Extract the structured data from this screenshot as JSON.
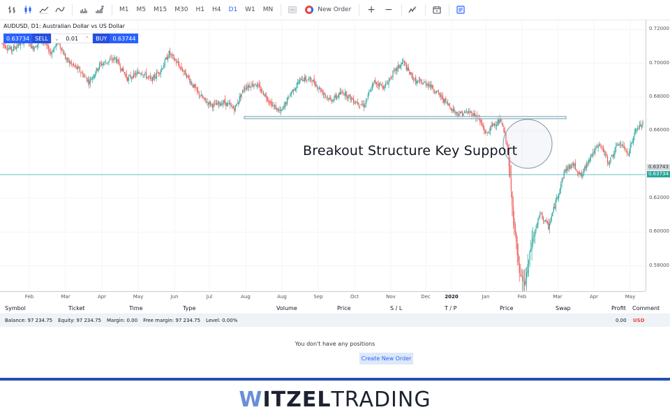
{
  "toolbar": {
    "chart_types": [
      {
        "name": "bar-chart-icon",
        "active": false
      },
      {
        "name": "candlestick-icon",
        "active": true
      },
      {
        "name": "line-chart-icon",
        "active": false
      },
      {
        "name": "area-chart-icon",
        "active": false
      },
      {
        "name": "volume-icon",
        "active": false
      },
      {
        "name": "tick-volume-icon",
        "active": false
      }
    ],
    "timeframes": [
      "M1",
      "M5",
      "M15",
      "M30",
      "H1",
      "H4",
      "D1",
      "W1",
      "MN"
    ],
    "active_timeframe": "D1",
    "new_order_label": "New Order",
    "zoom_in": "+",
    "zoom_out": "−"
  },
  "chart": {
    "title": "AUDUSD, D1: Australian Dollar vs US Dollar",
    "sell_price": "0.63734",
    "sell_label": "SELL",
    "quantity": "0.01",
    "buy_label": "BUY",
    "buy_price": "0.63744",
    "annotation": "Breakout Structure Key Support",
    "last_price_tag": "0.63743",
    "bid_price_tag": "0.63734",
    "colors": {
      "up": "#26a69a",
      "down": "#ef5350",
      "support_box": "#8fb3bd",
      "bid_line": "#26a69a"
    }
  },
  "chart_data": {
    "type": "candlestick",
    "title": "AUDUSD, D1: Australian Dollar vs US Dollar",
    "y_ticks": [
      "0.72000",
      "0.70000",
      "0.68000",
      "0.66000",
      "0.62000",
      "0.60000",
      "0.58000"
    ],
    "ylim": [
      0.565,
      0.7255
    ],
    "x_ticks": [
      "Feb",
      "Mar",
      "Apr",
      "May",
      "Jun",
      "Jul",
      "Aug",
      "Aug",
      "Sep",
      "Oct",
      "Nov",
      "Dec",
      "2020",
      "Jan",
      "Feb",
      "Mar",
      "Apr",
      "May"
    ],
    "path_points": [
      [
        0,
        0.712
      ],
      [
        10,
        0.708
      ],
      [
        25,
        0.715
      ],
      [
        30,
        0.709
      ],
      [
        40,
        0.714
      ],
      [
        48,
        0.706
      ],
      [
        55,
        0.713
      ],
      [
        63,
        0.702
      ],
      [
        75,
        0.696
      ],
      [
        85,
        0.689
      ],
      [
        95,
        0.699
      ],
      [
        110,
        0.703
      ],
      [
        122,
        0.691
      ],
      [
        135,
        0.695
      ],
      [
        145,
        0.69
      ],
      [
        155,
        0.697
      ],
      [
        162,
        0.706
      ],
      [
        170,
        0.7
      ],
      [
        180,
        0.692
      ],
      [
        188,
        0.684
      ],
      [
        196,
        0.678
      ],
      [
        205,
        0.675
      ],
      [
        215,
        0.677
      ],
      [
        225,
        0.673
      ],
      [
        235,
        0.686
      ],
      [
        245,
        0.688
      ],
      [
        255,
        0.681
      ],
      [
        262,
        0.675
      ],
      [
        270,
        0.671
      ],
      [
        280,
        0.683
      ],
      [
        290,
        0.691
      ],
      [
        300,
        0.69
      ],
      [
        310,
        0.683
      ],
      [
        318,
        0.678
      ],
      [
        330,
        0.683
      ],
      [
        340,
        0.678
      ],
      [
        350,
        0.675
      ],
      [
        360,
        0.689
      ],
      [
        370,
        0.686
      ],
      [
        378,
        0.694
      ],
      [
        388,
        0.701
      ],
      [
        392,
        0.696
      ],
      [
        400,
        0.689
      ],
      [
        412,
        0.688
      ],
      [
        420,
        0.683
      ],
      [
        432,
        0.675
      ],
      [
        440,
        0.67
      ],
      [
        452,
        0.671
      ],
      [
        460,
        0.668
      ],
      [
        468,
        0.658
      ],
      [
        475,
        0.664
      ],
      [
        482,
        0.666
      ],
      [
        488,
        0.653
      ],
      [
        494,
        0.61
      ],
      [
        500,
        0.575
      ],
      [
        505,
        0.569
      ],
      [
        512,
        0.594
      ],
      [
        520,
        0.611
      ],
      [
        528,
        0.603
      ],
      [
        536,
        0.62
      ],
      [
        544,
        0.637
      ],
      [
        552,
        0.64
      ],
      [
        560,
        0.633
      ],
      [
        568,
        0.645
      ],
      [
        578,
        0.652
      ],
      [
        586,
        0.641
      ],
      [
        596,
        0.653
      ],
      [
        605,
        0.647
      ],
      [
        612,
        0.66
      ],
      [
        618,
        0.664
      ]
    ],
    "support_zone": [
      0.6685,
      0.6672
    ],
    "bid_line": 0.63734,
    "highlight_circle": {
      "center_date": "Feb 2020",
      "price": 0.66
    }
  },
  "positions": {
    "columns": [
      "Symbol",
      "Ticket",
      "Time",
      "Type",
      "Volume",
      "Price",
      "S / L",
      "T / P",
      "Price",
      "Swap",
      "Profit",
      "Comment"
    ],
    "summary": {
      "balance": "Balance: 97 234.75",
      "equity": "Equity: 97 234.75",
      "margin": "Margin: 0.00",
      "free_margin": "Free margin: 97 234.75",
      "level": "Level: 0.00%",
      "profit": "0.00",
      "currency": "USD"
    },
    "empty_message": "You don't have any positions",
    "create_button": "Create New Order"
  },
  "brand": {
    "w": "W",
    "itzel": "ITZEL",
    "trading": "TRADING"
  }
}
